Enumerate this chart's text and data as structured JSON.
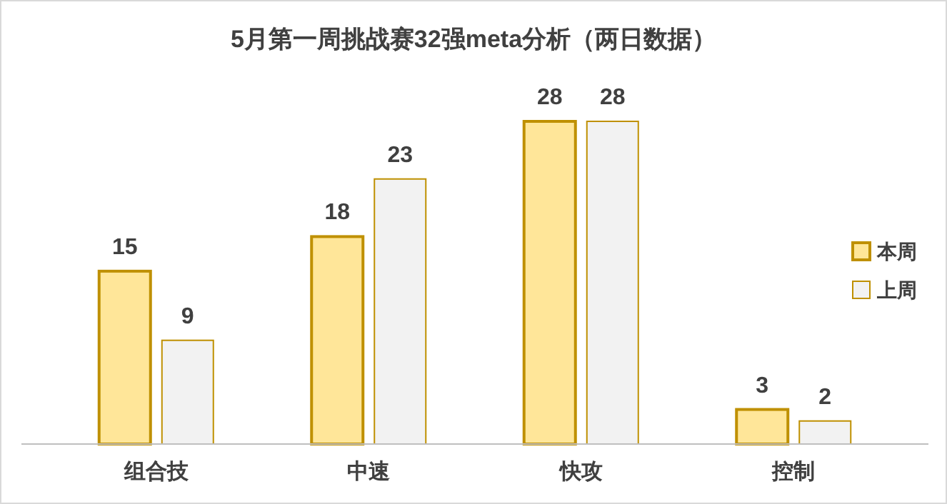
{
  "chart_data": {
    "type": "bar",
    "title": "5月第一周挑战赛32强meta分析（两日数据）",
    "categories": [
      "组合技",
      "中速",
      "快攻",
      "控制"
    ],
    "series": [
      {
        "name": "本周",
        "color": "#ffe699",
        "values": [
          15,
          18,
          28,
          3
        ]
      },
      {
        "name": "上周",
        "color": "#f2f2f2",
        "values": [
          9,
          23,
          28,
          2
        ]
      }
    ],
    "data_labels": true,
    "legend": "right"
  }
}
